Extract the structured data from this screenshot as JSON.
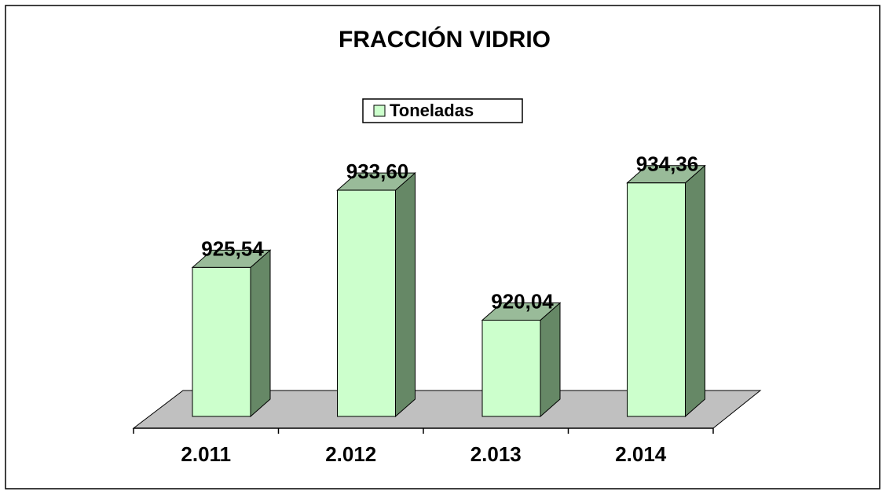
{
  "chart_data": {
    "type": "bar",
    "title": "FRACCIÓN VIDRIO",
    "categories": [
      "2.011",
      "2.012",
      "2.013",
      "2.014"
    ],
    "series": [
      {
        "name": "Toneladas",
        "color": "#ccffcc",
        "values": [
          925.54,
          933.6,
          920.04,
          934.36
        ],
        "value_labels": [
          "925,54",
          "933,60",
          "920,04",
          "934,36"
        ]
      }
    ],
    "ylim": [
      910,
      940
    ]
  }
}
